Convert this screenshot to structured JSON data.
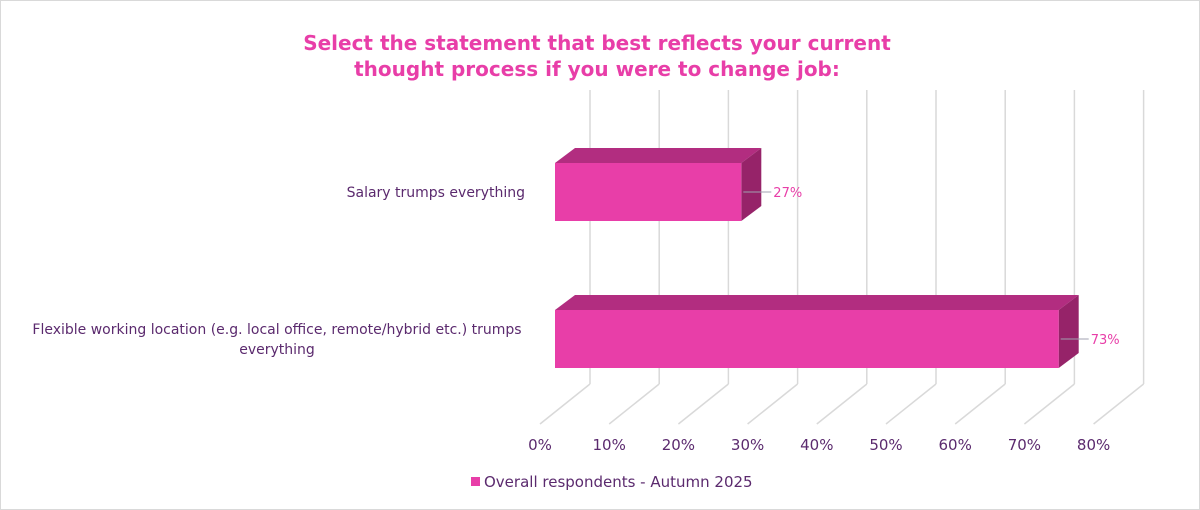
{
  "chart_data": {
    "type": "bar",
    "orientation": "horizontal",
    "style": "3d",
    "title": [
      "Select the statement that best reflects your current",
      "thought process if you were to change job:"
    ],
    "categories": [
      [
        "Salary trumps everything"
      ],
      [
        "Flexible working location (e.g. local office, remote/hybrid etc.) trumps",
        "everything"
      ]
    ],
    "series": [
      {
        "name": "Overall respondents - Autumn 2025",
        "values": [
          27,
          73
        ],
        "color": "#e83ea8"
      }
    ],
    "data_labels": [
      "27%",
      "73%"
    ],
    "xlim": [
      0,
      80
    ],
    "xticks": [
      "0%",
      "10%",
      "20%",
      "30%",
      "40%",
      "50%",
      "60%",
      "70%",
      "80%"
    ],
    "grid": true,
    "legend": "bottom",
    "colors": {
      "front": "#e83ea8",
      "top": "#b22d80",
      "side": "#962369",
      "text": "#5b2a6e",
      "grid": "#d9d9d9"
    }
  }
}
